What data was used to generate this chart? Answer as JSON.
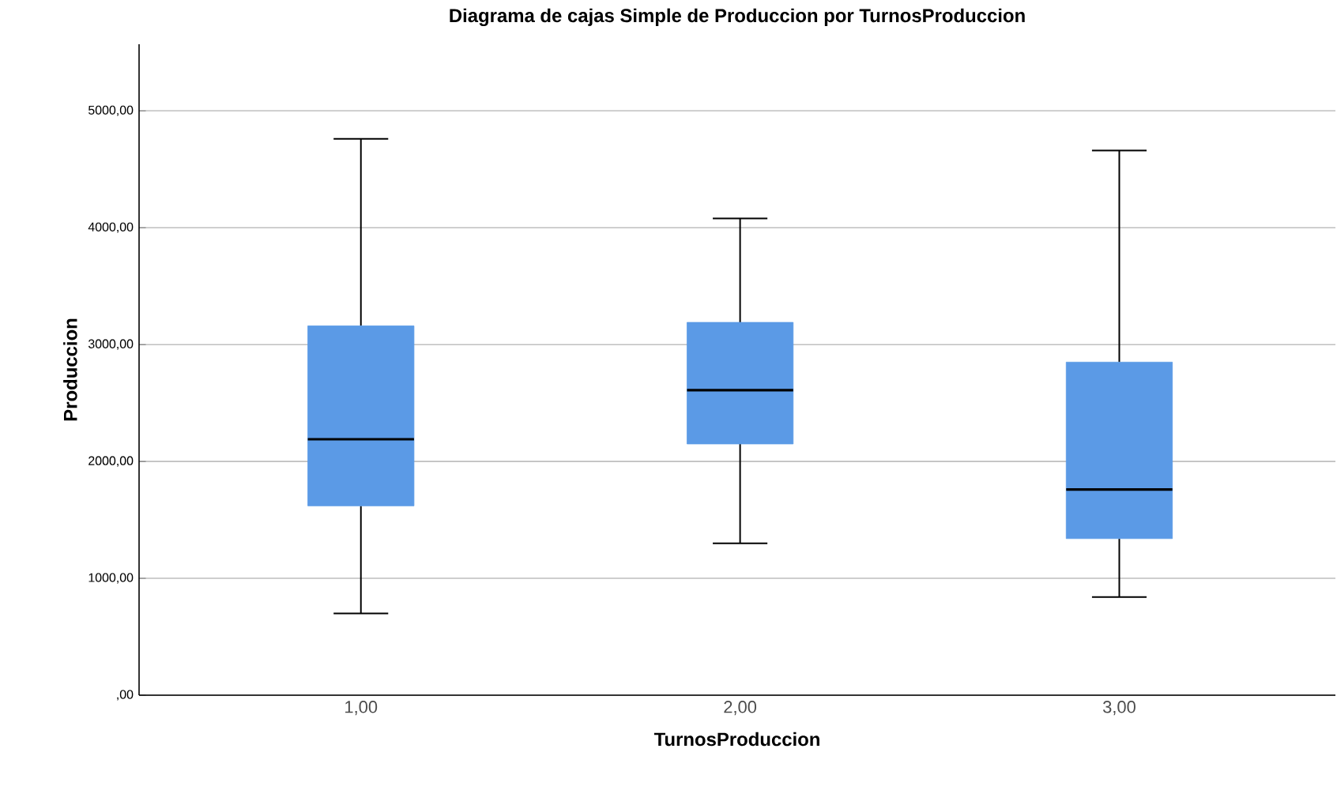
{
  "chart_data": {
    "type": "box",
    "title": "Diagrama de cajas Simple de Produccion por TurnosProduccion",
    "xlabel": "TurnosProduccion",
    "ylabel": "Produccion",
    "categories": [
      "1,00",
      "2,00",
      "3,00"
    ],
    "series": [
      {
        "color": "#5b9ae6",
        "boxes": [
          {
            "low": 700,
            "q1": 1620,
            "median": 2190,
            "q3": 3160,
            "high": 4760
          },
          {
            "low": 1300,
            "q1": 2150,
            "median": 2610,
            "q3": 3190,
            "high": 4080
          },
          {
            "low": 840,
            "q1": 1340,
            "median": 1760,
            "q3": 2850,
            "high": 4660
          }
        ]
      }
    ],
    "ylim": [
      0,
      5570
    ],
    "yticks": [
      {
        "value": 0,
        "label": ",00"
      },
      {
        "value": 1000,
        "label": "1000,00"
      },
      {
        "value": 2000,
        "label": "2000,00"
      },
      {
        "value": 3000,
        "label": "3000,00"
      },
      {
        "value": 4000,
        "label": "4000,00"
      },
      {
        "value": 5000,
        "label": "5000,00"
      }
    ],
    "grid": "y"
  }
}
